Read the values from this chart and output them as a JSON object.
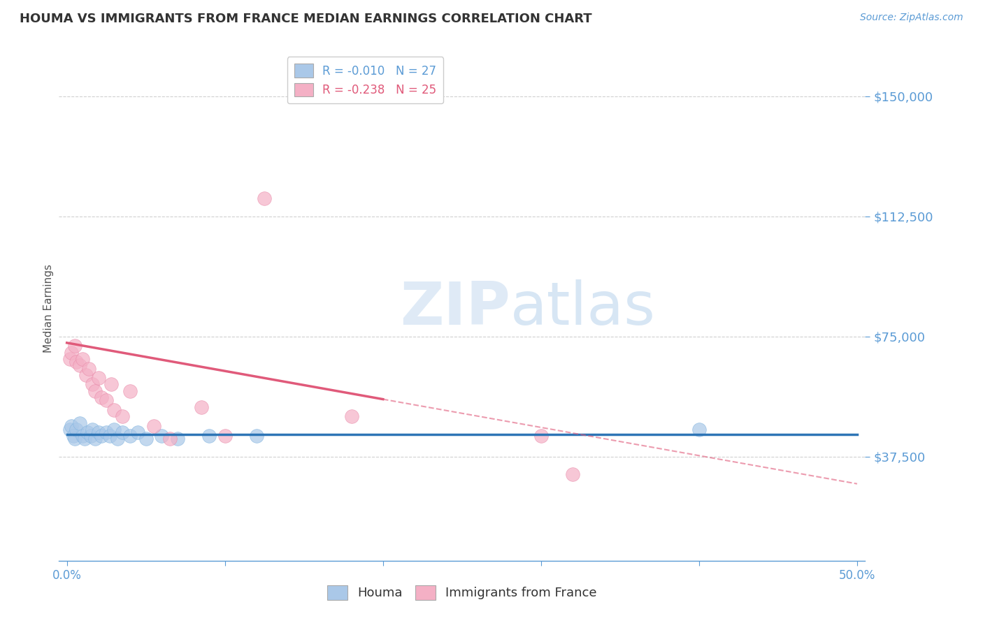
{
  "title": "HOUMA VS IMMIGRANTS FROM FRANCE MEDIAN EARNINGS CORRELATION CHART",
  "source_text": "Source: ZipAtlas.com",
  "ylabel": "Median Earnings",
  "xlim": [
    -0.5,
    50.5
  ],
  "ylim": [
    5000,
    162500
  ],
  "yticks": [
    37500,
    75000,
    112500,
    150000
  ],
  "ytick_labels": [
    "$37,500",
    "$75,000",
    "$112,500",
    "$150,000"
  ],
  "xtick_positions": [
    0,
    10,
    20,
    30,
    40,
    50
  ],
  "xtick_labels_show": [
    "0.0%",
    "",
    "",
    "",
    "",
    "50.0%"
  ],
  "background_color": "#ffffff",
  "grid_color": "#d0d0d0",
  "axis_color": "#5b9bd5",
  "ylabel_color": "#555555",
  "title_color": "#333333",
  "watermark_zip": "ZIP",
  "watermark_atlas": "atlas",
  "legend_R1": "R = -0.010",
  "legend_N1": "N = 27",
  "legend_R2": "R = -0.238",
  "legend_N2": "N = 25",
  "legend_label1": "Houma",
  "legend_label2": "Immigrants from France",
  "houma_color": "#aac8e8",
  "houma_edge_color": "#7eb3e0",
  "houma_line_color": "#2e75b6",
  "france_color": "#f4b0c5",
  "france_edge_color": "#e888a8",
  "france_line_color": "#e05a7a",
  "houma_x": [
    0.2,
    0.3,
    0.4,
    0.5,
    0.6,
    0.8,
    1.0,
    1.1,
    1.3,
    1.5,
    1.6,
    1.8,
    2.0,
    2.2,
    2.5,
    2.7,
    3.0,
    3.2,
    3.5,
    4.0,
    4.5,
    5.0,
    6.0,
    7.0,
    9.0,
    12.0,
    40.0
  ],
  "houma_y": [
    46000,
    47000,
    44000,
    43000,
    46000,
    48000,
    44000,
    43000,
    45000,
    44000,
    46000,
    43000,
    45000,
    44000,
    45000,
    44000,
    46000,
    43000,
    45000,
    44000,
    45000,
    43000,
    44000,
    43000,
    44000,
    44000,
    46000
  ],
  "france_x": [
    0.2,
    0.3,
    0.5,
    0.6,
    0.8,
    1.0,
    1.2,
    1.4,
    1.6,
    1.8,
    2.0,
    2.2,
    2.5,
    2.8,
    3.0,
    3.5,
    4.0,
    5.5,
    6.5,
    8.5,
    10.0,
    12.5,
    18.0,
    30.0,
    32.0
  ],
  "france_y": [
    68000,
    70000,
    72000,
    67000,
    66000,
    68000,
    63000,
    65000,
    60000,
    58000,
    62000,
    56000,
    55000,
    60000,
    52000,
    50000,
    58000,
    47000,
    43000,
    53000,
    44000,
    118000,
    50000,
    44000,
    32000
  ],
  "houma_intercept": 44500,
  "houma_slope": 20,
  "france_intercept": 73000,
  "france_slope": -880,
  "france_solid_end": 20,
  "france_dashed_end": 50
}
